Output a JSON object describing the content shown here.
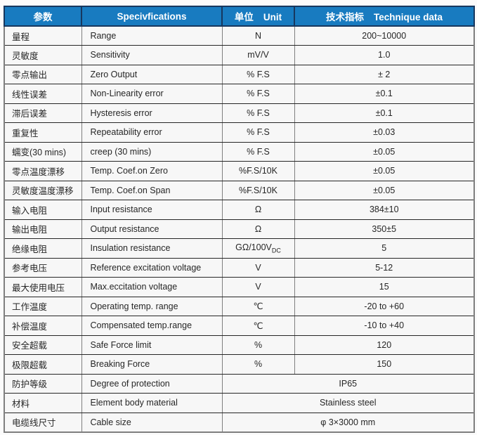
{
  "table": {
    "colors": {
      "header_bg": "#187bc0",
      "header_border": "#17375e",
      "header_text": "#ffffff",
      "row_line": "#262626",
      "grid_line": "#7f7f7f",
      "cell_bg": "#f7f7f7",
      "text": "#262626",
      "page_bg": "#fbfbfb"
    },
    "header": {
      "columns": [
        {
          "zh": "参数",
          "en": ""
        },
        {
          "zh": "",
          "en": "Specivfications"
        },
        {
          "zh": "单位",
          "en": "Unit"
        },
        {
          "zh": "技术指标",
          "en": "Technique data"
        }
      ]
    },
    "rows": [
      {
        "param_zh": "量程",
        "spec_en": "Range",
        "unit": "N",
        "unit_sub": "",
        "value": "200~10000",
        "merged": false
      },
      {
        "param_zh": "灵敏度",
        "spec_en": "Sensitivity",
        "unit": "mV/V",
        "unit_sub": "",
        "value": "1.0",
        "merged": false
      },
      {
        "param_zh": "零点输出",
        "spec_en": "Zero Output",
        "unit": "% F.S",
        "unit_sub": "",
        "value": "± 2",
        "merged": false
      },
      {
        "param_zh": "线性误差",
        "spec_en": "Non-Linearity error",
        "unit": "% F.S",
        "unit_sub": "",
        "value": "±0.1",
        "merged": false
      },
      {
        "param_zh": "滞后误差",
        "spec_en": "Hysteresis error",
        "unit": "% F.S",
        "unit_sub": "",
        "value": "±0.1",
        "merged": false
      },
      {
        "param_zh": "重复性",
        "spec_en": "Repeatability error",
        "unit": "% F.S",
        "unit_sub": "",
        "value": "±0.03",
        "merged": false
      },
      {
        "param_zh": "蠕变(30 mins)",
        "spec_en": "creep (30 mins)",
        "unit": "% F.S",
        "unit_sub": "",
        "value": "±0.05",
        "merged": false
      },
      {
        "param_zh": "零点温度漂移",
        "spec_en": "Temp. Coef.on Zero",
        "unit": "%F.S/10K",
        "unit_sub": "",
        "value": "±0.05",
        "merged": false
      },
      {
        "param_zh": "灵敏度温度漂移",
        "spec_en": "Temp. Coef.on Span",
        "unit": "%F.S/10K",
        "unit_sub": "",
        "value": "±0.05",
        "merged": false
      },
      {
        "param_zh": "输入电阻",
        "spec_en": "Input resistance",
        "unit": "Ω",
        "unit_sub": "",
        "value": "384±10",
        "merged": false
      },
      {
        "param_zh": "输出电阻",
        "spec_en": "Output resistance",
        "unit": "Ω",
        "unit_sub": "",
        "value": "350±5",
        "merged": false
      },
      {
        "param_zh": "绝缘电阻",
        "spec_en": "Insulation resistance",
        "unit": "GΩ/100V",
        "unit_sub": "DC",
        "value": "5",
        "merged": false
      },
      {
        "param_zh": "参考电压",
        "spec_en": "Reference excitation voltage",
        "unit": "V",
        "unit_sub": "",
        "value": "5-12",
        "merged": false
      },
      {
        "param_zh": "最大使用电压",
        "spec_en": "Max.eccitation voltage",
        "unit": "V",
        "unit_sub": "",
        "value": "15",
        "merged": false
      },
      {
        "param_zh": "工作温度",
        "spec_en": "Operating temp. range",
        "unit": "℃",
        "unit_sub": "",
        "value": "-20 to +60",
        "merged": false
      },
      {
        "param_zh": "补偿温度",
        "spec_en": "Compensated temp.range",
        "unit": "℃",
        "unit_sub": "",
        "value": "-10 to +40",
        "merged": false
      },
      {
        "param_zh": "安全超载",
        "spec_en": "Safe Force limit",
        "unit": "%",
        "unit_sub": "",
        "value": "120",
        "merged": false
      },
      {
        "param_zh": "极限超载",
        "spec_en": "Breaking Force",
        "unit": "%",
        "unit_sub": "",
        "value": "150",
        "merged": false
      },
      {
        "param_zh": "防护等级",
        "spec_en": "Degree of protection",
        "unit": "",
        "unit_sub": "",
        "value": "IP65",
        "merged": true
      },
      {
        "param_zh": "材料",
        "spec_en": "Element body material",
        "unit": "",
        "unit_sub": "",
        "value": "Stainless steel",
        "merged": true
      },
      {
        "param_zh": "电缆线尺寸",
        "spec_en": "Cable size",
        "unit": "",
        "unit_sub": "",
        "value": "φ 3×3000 mm",
        "merged": true
      }
    ]
  }
}
